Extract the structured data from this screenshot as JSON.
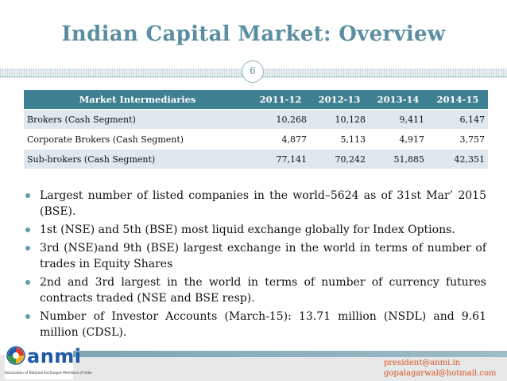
{
  "slide": {
    "title": "Indian Capital Market: Overview",
    "page_number": "6"
  },
  "table": {
    "headers": [
      "Market Intermediaries",
      "2011-12",
      "2012-13",
      "2013-14",
      "2014-15"
    ],
    "rows": [
      [
        "Brokers (Cash Segment)",
        "10,268",
        "10,128",
        "9,411",
        "6,147"
      ],
      [
        "Corporate Brokers (Cash Segment)",
        "4,877",
        "5,113",
        "4,917",
        "3,757"
      ],
      [
        "Sub-brokers (Cash Segment)",
        "77,141",
        "70,242",
        "51,885",
        "42,351"
      ]
    ]
  },
  "bullets": [
    "Largest number of listed companies in the world–5624 as of 31st Mar’ 2015 (BSE).",
    "1st (NSE) and 5th (BSE) most liquid exchange globally for Index Options.",
    "3rd (NSE)and 9th (BSE) largest exchange in the world in terms of number of trades in Equity Shares",
    "2nd and 3rd largest in the world in terms of number of currency futures contracts traded (NSE and BSE resp).",
    "Number of Investor Accounts (March-15): 13.71 million (NSDL) and 9.61 million (CDSL)."
  ],
  "footer": {
    "logo_text": "anmi",
    "logo_subtitle": "Association of National Exchanges Members of India",
    "contact_1": "president@anmi.in",
    "contact_2": "gopalagarwal@hotmail.com"
  },
  "colors": {
    "title": "#5b8ea0",
    "table_header": "#3e7f92",
    "row_shade": "#dfe8ec",
    "bullet": "#5b9db2",
    "contact": "#d9541e",
    "logo": "#1f5aa8"
  }
}
